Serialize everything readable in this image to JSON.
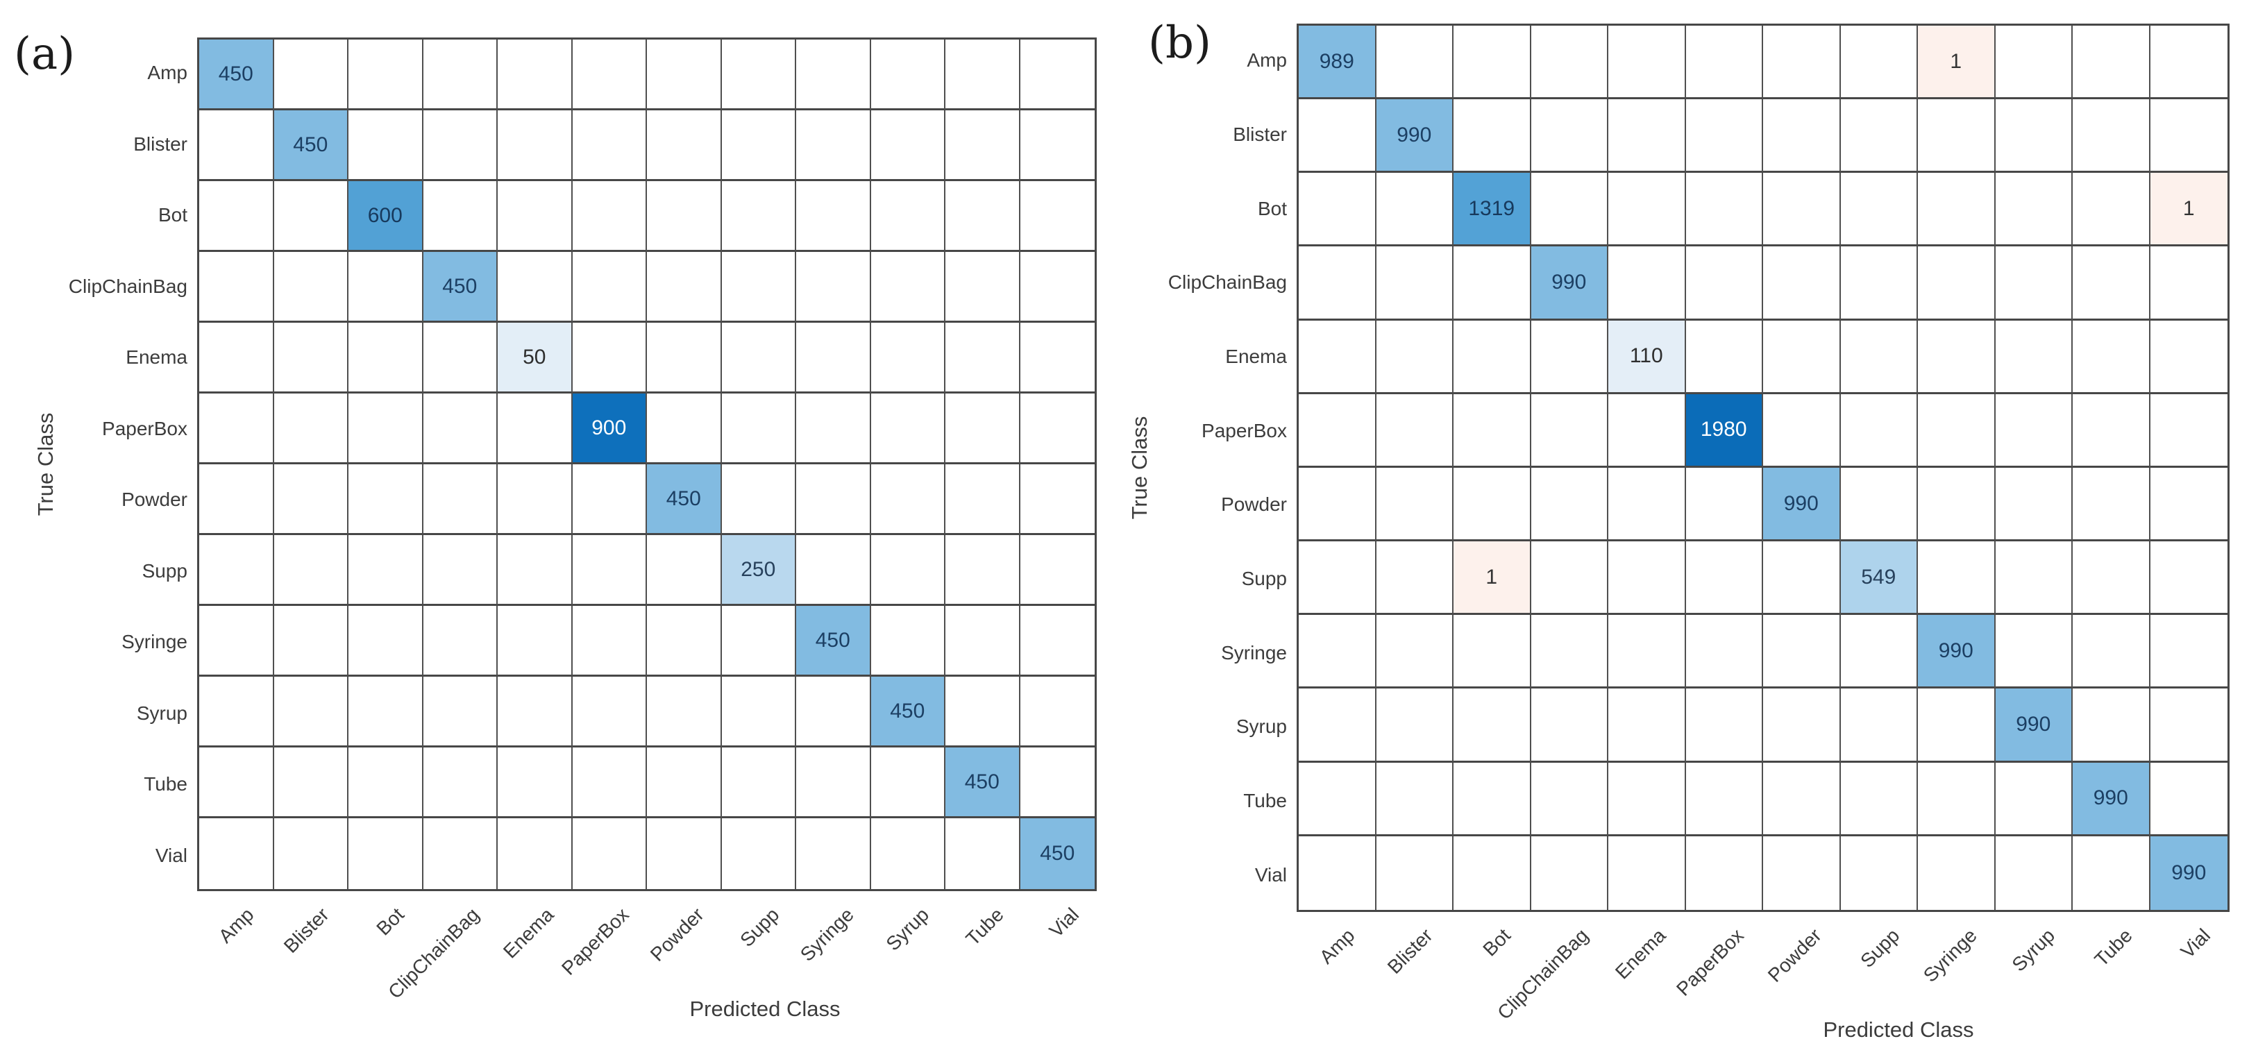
{
  "chart_data": [
    {
      "type": "heatmap",
      "tag": "(a)",
      "xlabel": "Predicted Class",
      "ylabel": "True Class",
      "classes": [
        "Amp",
        "Blister",
        "Bot",
        "ClipChainBag",
        "Enema",
        "PaperBox",
        "Powder",
        "Supp",
        "Syringe",
        "Syrup",
        "Tube",
        "Vial"
      ],
      "max_value": 900,
      "cells": [
        {
          "true": "Amp",
          "pred": "Amp",
          "value": 450,
          "bg": "#82bbe1",
          "fg": "#1c3f63"
        },
        {
          "true": "Blister",
          "pred": "Blister",
          "value": 450,
          "bg": "#82bbe1",
          "fg": "#1c3f63"
        },
        {
          "true": "Bot",
          "pred": "Bot",
          "value": 600,
          "bg": "#52a1d5",
          "fg": "#17395c"
        },
        {
          "true": "ClipChainBag",
          "pred": "ClipChainBag",
          "value": 450,
          "bg": "#82bbe1",
          "fg": "#1c3f63"
        },
        {
          "true": "Enema",
          "pred": "Enema",
          "value": 50,
          "bg": "#e3eef7",
          "fg": "#2e2e2e"
        },
        {
          "true": "PaperBox",
          "pred": "PaperBox",
          "value": 900,
          "bg": "#0e70bc",
          "fg": "#ffffff"
        },
        {
          "true": "Powder",
          "pred": "Powder",
          "value": 450,
          "bg": "#82bbe1",
          "fg": "#1c3f63"
        },
        {
          "true": "Supp",
          "pred": "Supp",
          "value": 250,
          "bg": "#b9d8ee",
          "fg": "#27415c"
        },
        {
          "true": "Syringe",
          "pred": "Syringe",
          "value": 450,
          "bg": "#82bbe1",
          "fg": "#1c3f63"
        },
        {
          "true": "Syrup",
          "pred": "Syrup",
          "value": 450,
          "bg": "#82bbe1",
          "fg": "#1c3f63"
        },
        {
          "true": "Tube",
          "pred": "Tube",
          "value": 450,
          "bg": "#82bbe1",
          "fg": "#1c3f63"
        },
        {
          "true": "Vial",
          "pred": "Vial",
          "value": 450,
          "bg": "#82bbe1",
          "fg": "#1c3f63"
        }
      ]
    },
    {
      "type": "heatmap",
      "tag": "(b)",
      "xlabel": "Predicted Class",
      "ylabel": "True Class",
      "classes": [
        "Amp",
        "Blister",
        "Bot",
        "ClipChainBag",
        "Enema",
        "PaperBox",
        "Powder",
        "Supp",
        "Syringe",
        "Syrup",
        "Tube",
        "Vial"
      ],
      "max_value": 1980,
      "cells": [
        {
          "true": "Amp",
          "pred": "Amp",
          "value": 989,
          "bg": "#82bbe1",
          "fg": "#1c3f63"
        },
        {
          "true": "Amp",
          "pred": "Syringe",
          "value": 1,
          "bg": "#fdf1ec",
          "fg": "#333333"
        },
        {
          "true": "Blister",
          "pred": "Blister",
          "value": 990,
          "bg": "#82bbe1",
          "fg": "#1c3f63"
        },
        {
          "true": "Bot",
          "pred": "Bot",
          "value": 1319,
          "bg": "#53a2d6",
          "fg": "#17395c"
        },
        {
          "true": "Bot",
          "pred": "Vial",
          "value": 1,
          "bg": "#fdf1ec",
          "fg": "#333333"
        },
        {
          "true": "ClipChainBag",
          "pred": "ClipChainBag",
          "value": 990,
          "bg": "#82bbe1",
          "fg": "#1c3f63"
        },
        {
          "true": "Enema",
          "pred": "Enema",
          "value": 110,
          "bg": "#e4eef7",
          "fg": "#2e2e2e"
        },
        {
          "true": "PaperBox",
          "pred": "PaperBox",
          "value": 1980,
          "bg": "#0b6cb8",
          "fg": "#ffffff"
        },
        {
          "true": "Powder",
          "pred": "Powder",
          "value": 990,
          "bg": "#82bbe1",
          "fg": "#1c3f63"
        },
        {
          "true": "Supp",
          "pred": "Bot",
          "value": 1,
          "bg": "#fdf1ec",
          "fg": "#333333"
        },
        {
          "true": "Supp",
          "pred": "Supp",
          "value": 549,
          "bg": "#aed3ec",
          "fg": "#27415c"
        },
        {
          "true": "Syringe",
          "pred": "Syringe",
          "value": 990,
          "bg": "#82bbe1",
          "fg": "#1c3f63"
        },
        {
          "true": "Syrup",
          "pred": "Syrup",
          "value": 990,
          "bg": "#82bbe1",
          "fg": "#1c3f63"
        },
        {
          "true": "Tube",
          "pred": "Tube",
          "value": 990,
          "bg": "#82bbe1",
          "fg": "#1c3f63"
        },
        {
          "true": "Vial",
          "pred": "Vial",
          "value": 990,
          "bg": "#82bbe1",
          "fg": "#1c3f63"
        }
      ]
    }
  ]
}
